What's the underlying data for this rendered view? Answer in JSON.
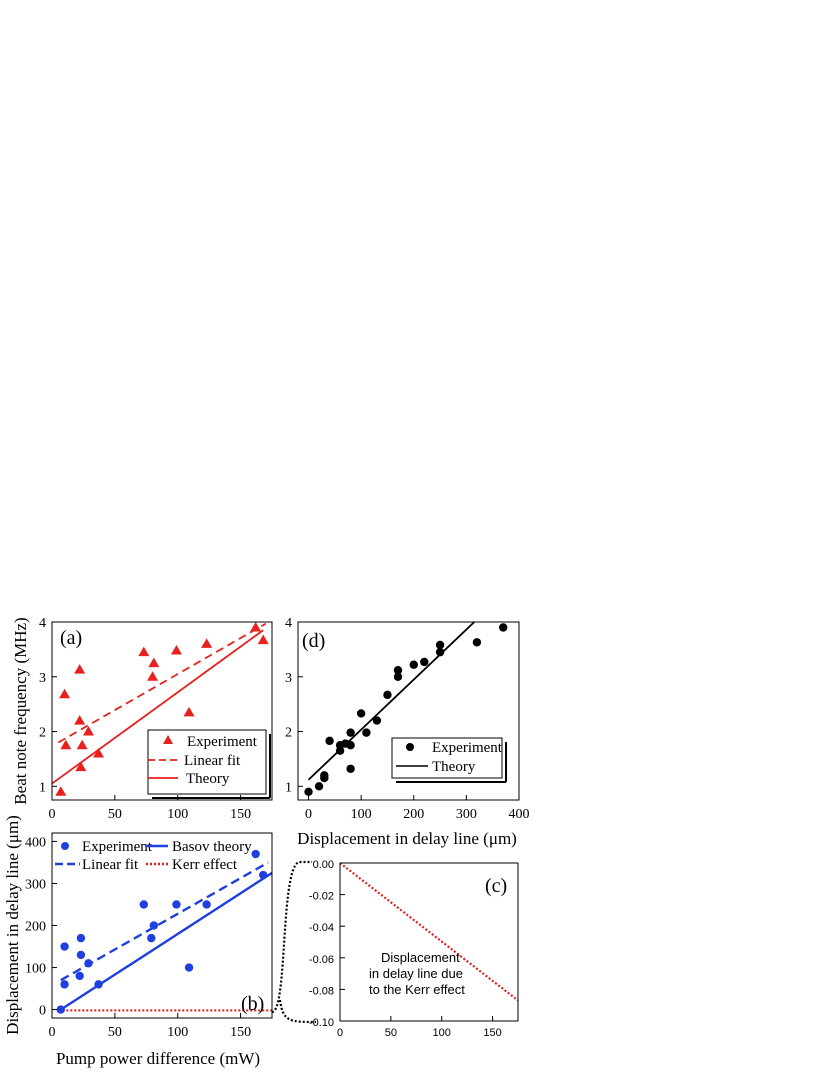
{
  "colors": {
    "red": "#e8201e",
    "blue": "#1f3fe0",
    "black": "#000000",
    "kerr": "#e0201c"
  },
  "chart_data": [
    {
      "id": "a",
      "panel_label": "(a)",
      "type": "scatter",
      "xlabel": "",
      "ylabel": "Beat note frequency (MHz)",
      "xlim": [
        0,
        175
      ],
      "ylim": [
        0.75,
        4
      ],
      "xticks": [
        0,
        50,
        100,
        150
      ],
      "yticks": [
        1,
        2,
        3,
        4
      ],
      "legend_position": "bottom-right",
      "series": [
        {
          "name": "Experiment",
          "kind": "points",
          "marker": "triangle",
          "x": [
            7,
            10,
            11,
            22,
            22,
            23,
            24,
            29,
            37,
            73,
            80,
            81,
            99,
            109,
            123,
            162,
            168
          ],
          "y": [
            0.9,
            2.68,
            1.75,
            3.13,
            2.2,
            1.35,
            1.75,
            2.0,
            1.6,
            3.45,
            3.0,
            3.25,
            3.48,
            2.35,
            3.6,
            3.9,
            3.67
          ]
        },
        {
          "name": "Linear fit",
          "kind": "dashed-line",
          "x": [
            5,
            170
          ],
          "y": [
            1.8,
            3.97
          ]
        },
        {
          "name": "Theory",
          "kind": "solid-line",
          "x": [
            0,
            168
          ],
          "y": [
            1.05,
            3.85
          ]
        }
      ]
    },
    {
      "id": "b",
      "panel_label": "(b)",
      "type": "scatter",
      "xlabel": "Pump power difference (mW)",
      "ylabel": "Displacement in delay line (μm)",
      "xlim": [
        0,
        175
      ],
      "ylim": [
        -20,
        420
      ],
      "xticks": [
        0,
        50,
        100,
        150
      ],
      "yticks": [
        0,
        100,
        200,
        300,
        400
      ],
      "legend_position": "top",
      "series": [
        {
          "name": "Experiment",
          "kind": "points",
          "marker": "circle",
          "x": [
            7,
            10,
            10,
            22,
            23,
            23,
            29,
            37,
            73,
            79,
            81,
            99,
            109,
            123,
            162,
            168
          ],
          "y": [
            0,
            150,
            60,
            80,
            170,
            130,
            110,
            60,
            250,
            170,
            200,
            250,
            100,
            250,
            370,
            320
          ]
        },
        {
          "name": "Linear fit",
          "kind": "dashed-line",
          "x": [
            7,
            172
          ],
          "y": [
            70,
            350
          ]
        },
        {
          "name": "Basov theory",
          "kind": "solid-line",
          "x": [
            7,
            175
          ],
          "y": [
            0,
            325
          ]
        },
        {
          "name": "Kerr effect",
          "kind": "dotted-line",
          "x": [
            5,
            175
          ],
          "y": [
            -2,
            -2
          ]
        }
      ]
    },
    {
      "id": "c",
      "panel_label": "(c)",
      "type": "line",
      "xlabel": "",
      "ylabel": "",
      "xlim": [
        0,
        175
      ],
      "ylim": [
        -0.1,
        0
      ],
      "xticks": [
        0,
        50,
        100,
        150
      ],
      "yticks": [
        "0.00",
        "-0.02",
        "-0.04",
        "-0.06",
        "-0.08",
        "-0.10"
      ],
      "annotation": [
        "Displacement",
        "in delay line due",
        "to the Kerr effect"
      ],
      "series": [
        {
          "name": "",
          "kind": "dotted-line",
          "x": [
            0,
            175
          ],
          "y": [
            0,
            -0.087
          ]
        }
      ]
    },
    {
      "id": "d",
      "panel_label": "(d)",
      "type": "scatter",
      "xlabel": "Displacement in delay line (μm)",
      "ylabel": "",
      "xlim": [
        -20,
        400
      ],
      "ylim": [
        0.75,
        4
      ],
      "xticks": [
        0,
        100,
        200,
        300,
        400
      ],
      "yticks": [
        1,
        2,
        3,
        4
      ],
      "legend_position": "bottom-right",
      "series": [
        {
          "name": "Experiment",
          "kind": "points",
          "marker": "circle",
          "x": [
            0,
            20,
            30,
            30,
            40,
            60,
            60,
            70,
            80,
            80,
            80,
            100,
            110,
            130,
            150,
            170,
            170,
            200,
            220,
            250,
            250,
            320,
            370
          ],
          "y": [
            0.9,
            1.0,
            1.15,
            1.2,
            1.83,
            1.75,
            1.65,
            1.78,
            1.75,
            1.98,
            1.32,
            2.33,
            1.98,
            2.2,
            2.67,
            3.0,
            3.12,
            3.22,
            3.27,
            3.45,
            3.58,
            3.63,
            3.9
          ]
        },
        {
          "name": "Theory",
          "kind": "solid-line",
          "x": [
            0,
            315
          ],
          "y": [
            1.12,
            4.0
          ]
        }
      ]
    }
  ]
}
